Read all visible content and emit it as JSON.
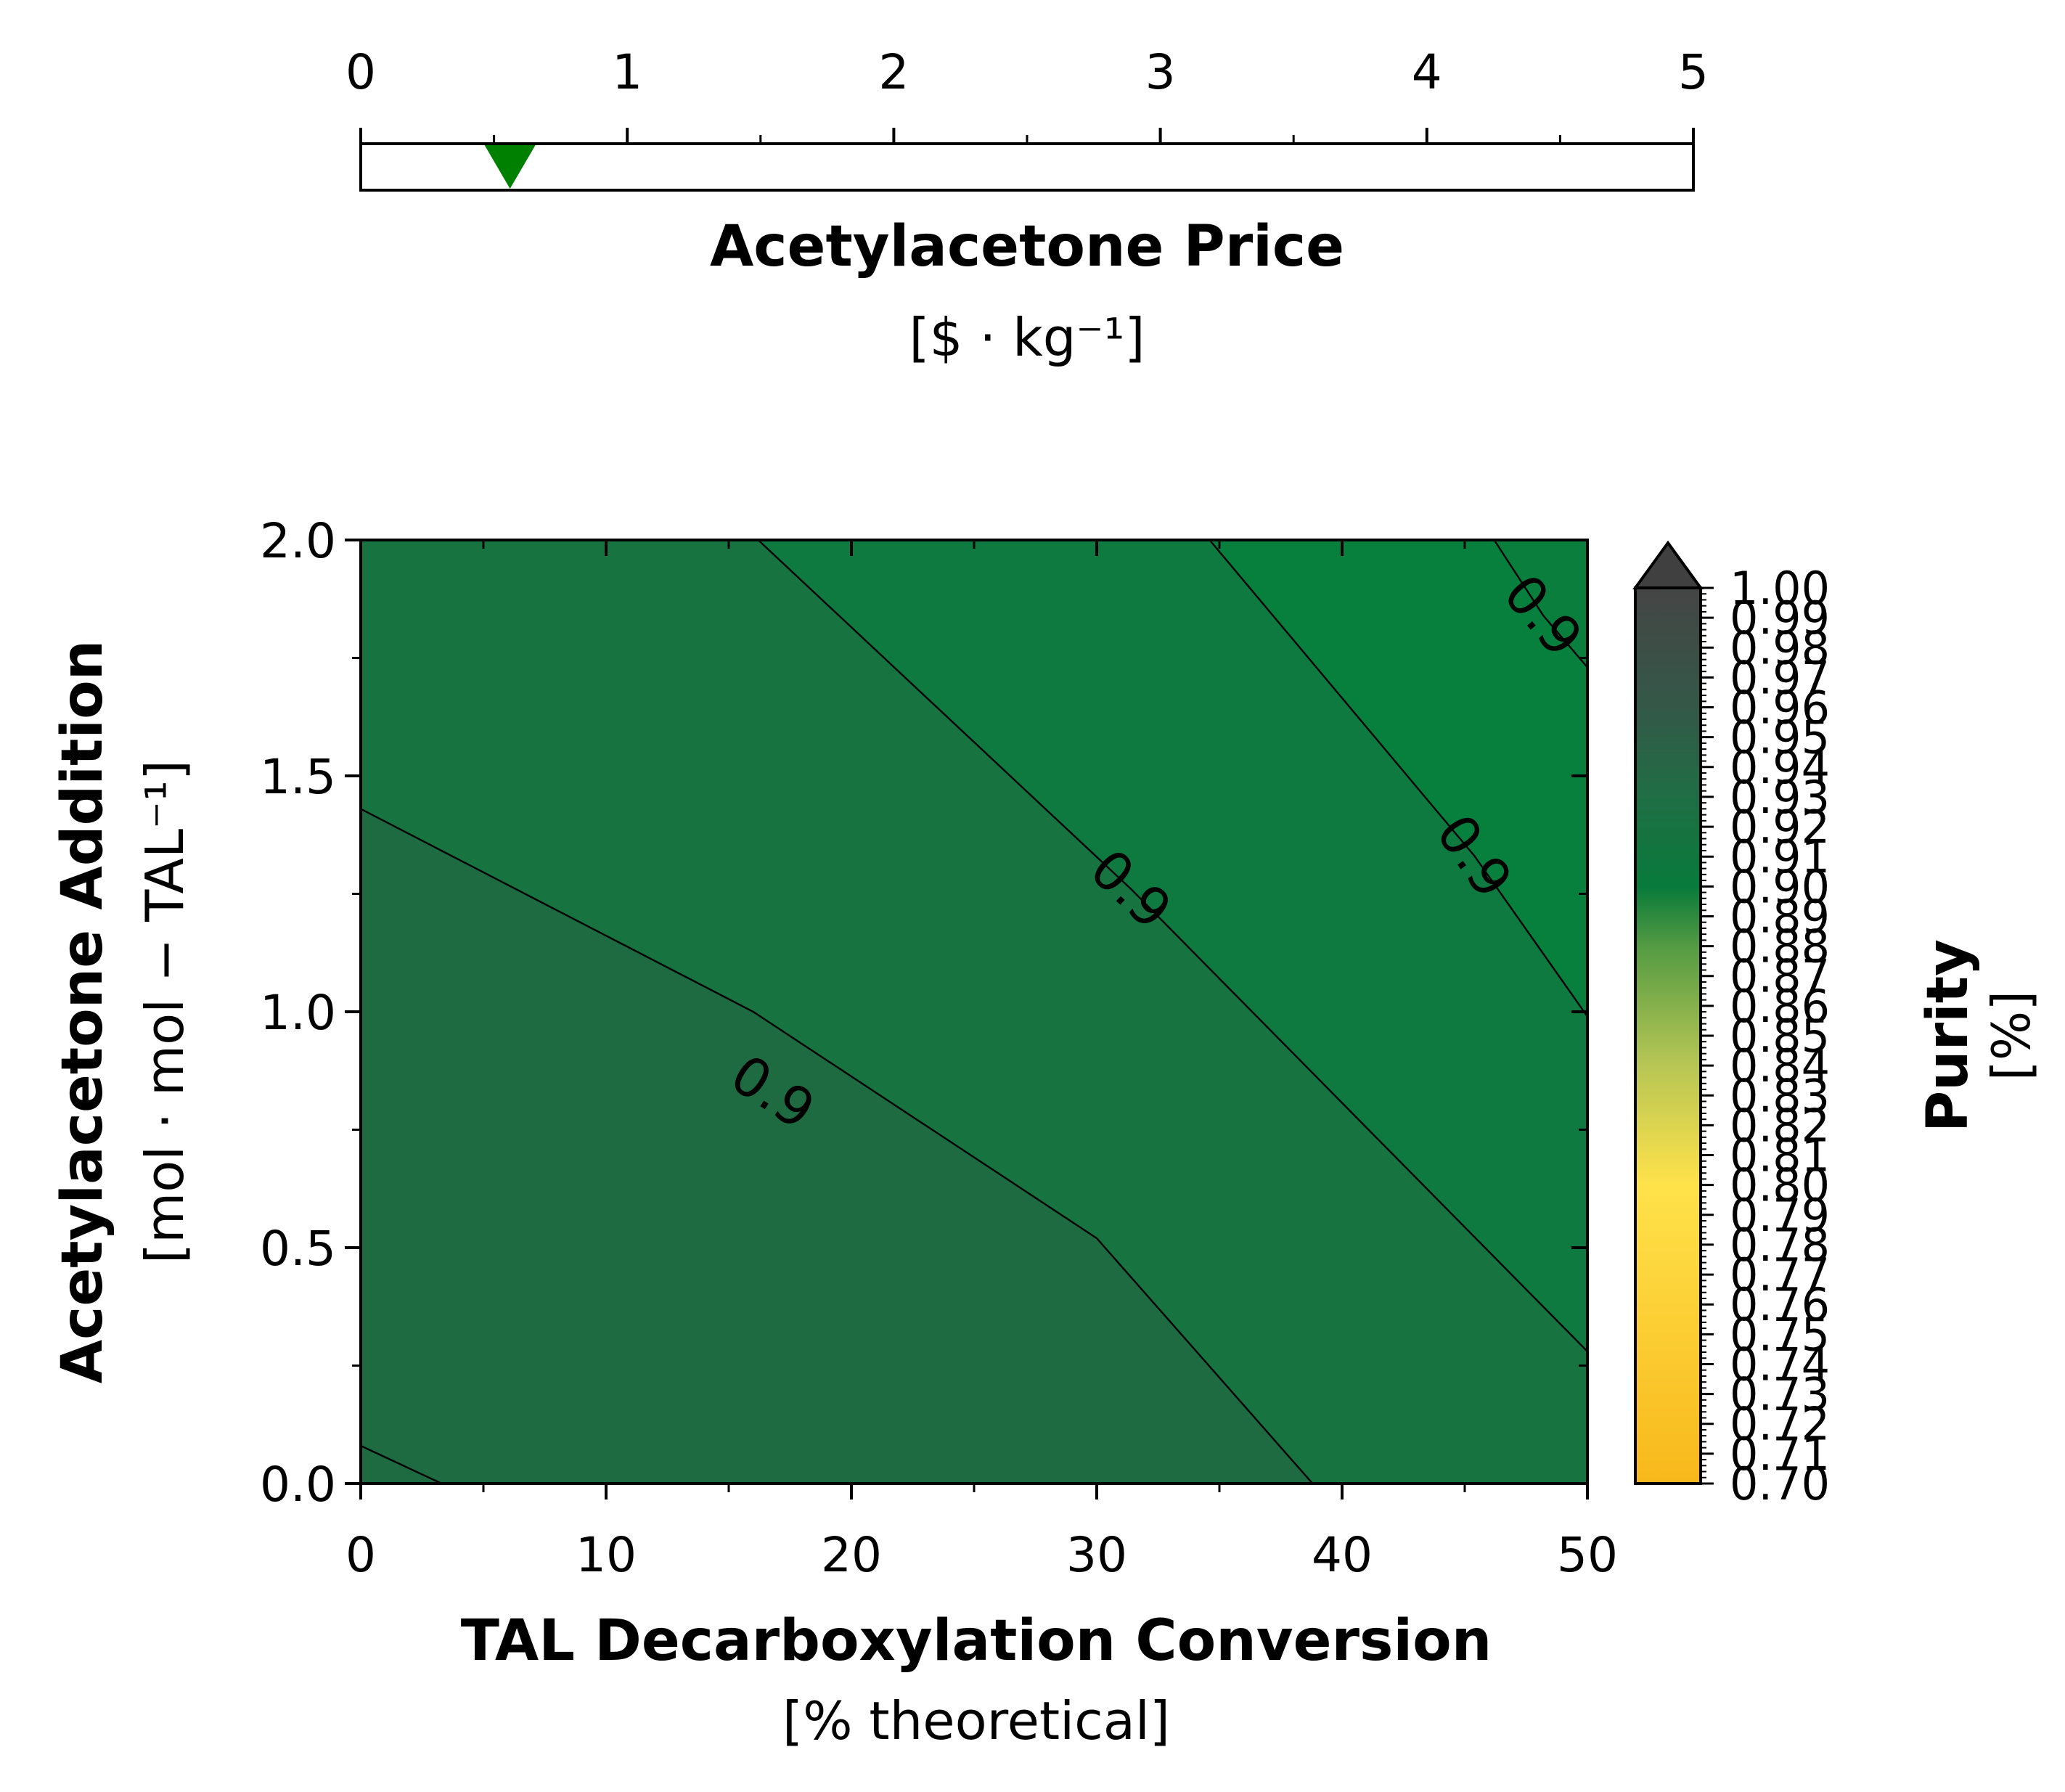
{
  "chart_data": [
    {
      "type": "slider",
      "title": "Acetylacetone Price",
      "unit": "[$ · kg⁻¹]",
      "xlim": [
        0,
        5
      ],
      "ticks": [
        "0",
        "1",
        "2",
        "3",
        "4",
        "5"
      ],
      "minor_ticks": [
        0.5,
        1.5,
        2.5,
        3.5,
        4.5
      ],
      "marker_value": 0.56,
      "marker_color": "#008000"
    },
    {
      "type": "contour",
      "xlabel": "TAL Decarboxylation Conversion",
      "xunit": "[% theoretical]",
      "ylabel": "Acetylacetone Addition",
      "yunit": "[mol · mol − TAL⁻¹]",
      "xlim": [
        0,
        50
      ],
      "ylim": [
        0,
        2
      ],
      "xticks": [
        "0",
        "10",
        "20",
        "30",
        "40",
        "50"
      ],
      "yticks": [
        "0.0",
        "0.5",
        "1.0",
        "1.5",
        "2.0"
      ],
      "contour_lines": [
        {
          "label": "0.9",
          "points": [
            [
              0,
              0.08
            ],
            [
              3.3,
              0
            ]
          ]
        },
        {
          "label": "0.9",
          "points": [
            [
              0,
              1.43
            ],
            [
              16,
              1.0
            ],
            [
              30,
              0.52
            ],
            [
              38.8,
              0
            ]
          ],
          "label_at": [
            16.8,
            0.83
          ]
        },
        {
          "label": "0.9",
          "points": [
            [
              16.2,
              2.0
            ],
            [
              31.4,
              1.26
            ],
            [
              50,
              0.28
            ]
          ],
          "label_at": [
            31.4,
            1.26
          ]
        },
        {
          "label": "0.9",
          "points": [
            [
              34.6,
              2.0
            ],
            [
              45.4,
              1.33
            ],
            [
              50,
              0.99
            ]
          ],
          "label_at": [
            45.4,
            1.33
          ]
        },
        {
          "label": "0.9",
          "points": [
            [
              46.2,
              2.0
            ],
            [
              48.2,
              1.84
            ],
            [
              50,
              1.73
            ]
          ],
          "label_at": [
            48.2,
            1.84
          ]
        }
      ],
      "regions": [
        {
          "color": "#1e6b42",
          "polygon": [
            [
              0,
              0
            ],
            [
              38.8,
              0
            ],
            [
              30,
              0.52
            ],
            [
              16,
              1.0
            ],
            [
              0,
              1.43
            ]
          ]
        },
        {
          "color": "#177441",
          "polygon": [
            [
              38.8,
              0
            ],
            [
              50,
              0
            ],
            [
              50,
              0.28
            ],
            [
              31.4,
              1.26
            ],
            [
              16.2,
              2.0
            ],
            [
              0,
              2.0
            ],
            [
              0,
              1.43
            ],
            [
              16,
              1.0
            ],
            [
              30,
              0.52
            ]
          ]
        },
        {
          "color": "#0f7a40",
          "polygon": [
            [
              50,
              0.28
            ],
            [
              50,
              0.99
            ],
            [
              45.4,
              1.33
            ],
            [
              34.6,
              2.0
            ],
            [
              16.2,
              2.0
            ],
            [
              31.4,
              1.26
            ]
          ]
        },
        {
          "color": "#06803c",
          "polygon": [
            [
              50,
              0.99
            ],
            [
              50,
              1.73
            ],
            [
              46.2,
              2.0
            ],
            [
              34.6,
              2.0
            ],
            [
              45.4,
              1.33
            ]
          ]
        },
        {
          "color": "#0a7f3d",
          "polygon": [
            [
              46.2,
              2.0
            ],
            [
              50,
              2.0
            ],
            [
              50,
              1.73
            ]
          ]
        }
      ]
    },
    {
      "type": "colorbar",
      "title": "Purity",
      "unit": "[%]",
      "range": [
        0.7,
        1.0
      ],
      "extend": "max",
      "extend_color": "#404040",
      "ticks": [
        "0.70",
        "0.71",
        "0.72",
        "0.73",
        "0.74",
        "0.75",
        "0.76",
        "0.77",
        "0.78",
        "0.79",
        "0.80",
        "0.81",
        "0.82",
        "0.83",
        "0.84",
        "0.85",
        "0.86",
        "0.87",
        "0.88",
        "0.89",
        "0.90",
        "0.91",
        "0.92",
        "0.93",
        "0.94",
        "0.95",
        "0.96",
        "0.97",
        "0.98",
        "0.99",
        "1.00"
      ],
      "color_stops": [
        {
          "v": 0.7,
          "c": "#f8b81b"
        },
        {
          "v": 0.8,
          "c": "#ffe24a"
        },
        {
          "v": 0.84,
          "c": "#b7c654"
        },
        {
          "v": 0.88,
          "c": "#549b43"
        },
        {
          "v": 0.9,
          "c": "#087a3b"
        },
        {
          "v": 0.93,
          "c": "#1f6e44"
        },
        {
          "v": 0.96,
          "c": "#345848"
        },
        {
          "v": 1.0,
          "c": "#454545"
        }
      ]
    }
  ]
}
